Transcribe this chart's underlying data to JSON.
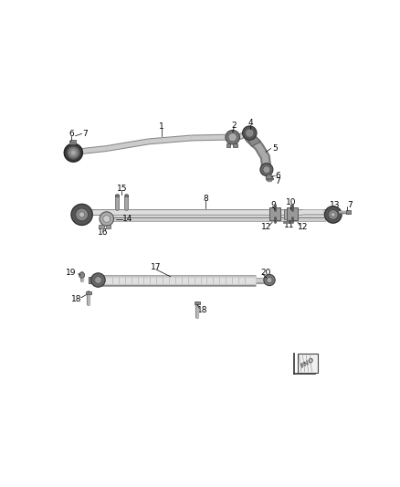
{
  "bg_color": "#ffffff",
  "fig_width": 4.38,
  "fig_height": 5.33,
  "dpi": 100,
  "rod_color": "#c8c8c8",
  "rod_edge": "#555555",
  "dark_part": "#888888",
  "black": "#000000",
  "label_fs": 6.5
}
